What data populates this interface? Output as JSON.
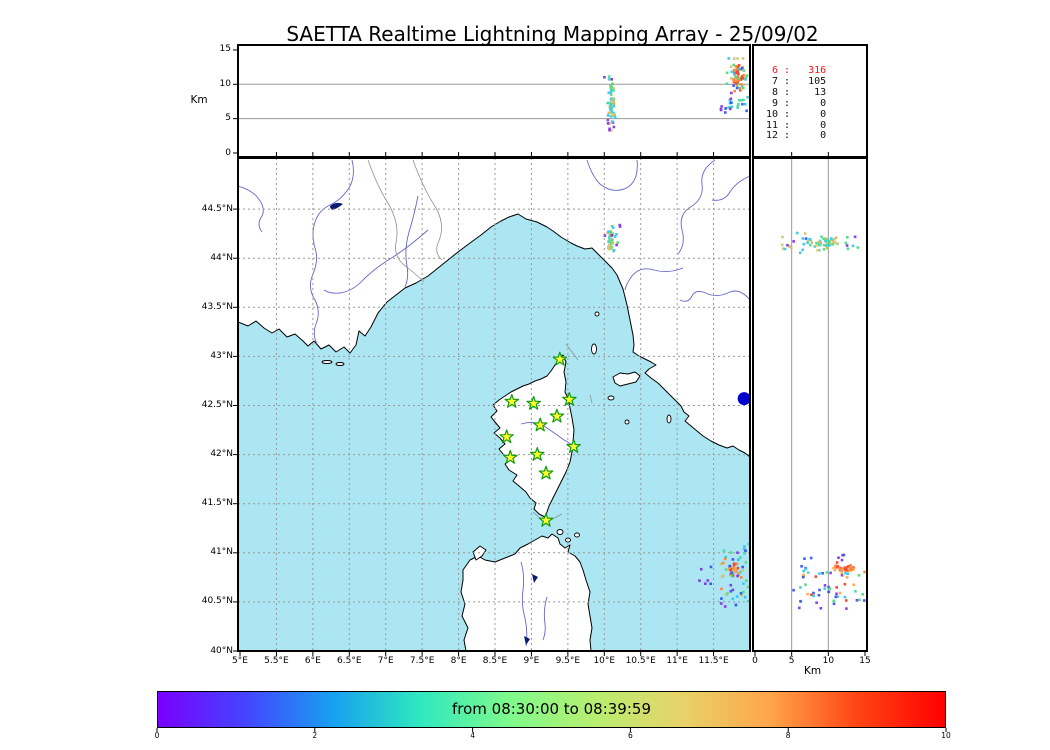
{
  "title": "SAETTA Realtime Lightning Mapping Array - 25/09/02",
  "top_panel": {
    "ylabel": "Km",
    "ticks": [
      {
        "label": "15",
        "value": 15
      },
      {
        "label": "10",
        "value": 10
      },
      {
        "label": "5",
        "value": 5
      },
      {
        "label": "0",
        "value": 0
      }
    ]
  },
  "right_panel": {
    "xlabel": "Km",
    "ticks": [
      {
        "label": "0",
        "value": 0
      },
      {
        "label": "5",
        "value": 5
      },
      {
        "label": "10",
        "value": 10
      },
      {
        "label": "15",
        "value": 15
      }
    ]
  },
  "source_counts": {
    "rows": [
      {
        "station": "6",
        "count": "316",
        "highlight": true
      },
      {
        "station": "7",
        "count": "105",
        "highlight": false
      },
      {
        "station": "8",
        "count": "13",
        "highlight": false
      },
      {
        "station": "9",
        "count": "0",
        "highlight": false
      },
      {
        "station": "10",
        "count": "0",
        "highlight": false
      },
      {
        "station": "11",
        "count": "0",
        "highlight": false
      },
      {
        "station": "12",
        "count": "0",
        "highlight": false
      }
    ],
    "highlight_color": "#ff1010"
  },
  "map_axes": {
    "lat_ticks": [
      {
        "label": "44.5°N",
        "value": 44.5
      },
      {
        "label": "44°N",
        "value": 44
      },
      {
        "label": "43.5°N",
        "value": 43.5
      },
      {
        "label": "43°N",
        "value": 43
      },
      {
        "label": "42.5°N",
        "value": 42.5
      },
      {
        "label": "42°N",
        "value": 42
      },
      {
        "label": "41.5°N",
        "value": 41.5
      },
      {
        "label": "41°N",
        "value": 41
      },
      {
        "label": "40.5°N",
        "value": 40.5
      },
      {
        "label": "40°N",
        "value": 40
      }
    ],
    "lon_ticks": [
      {
        "label": "5°E",
        "value": 5
      },
      {
        "label": "5.5°E",
        "value": 5.5
      },
      {
        "label": "6°E",
        "value": 6
      },
      {
        "label": "6.5°E",
        "value": 6.5
      },
      {
        "label": "7°E",
        "value": 7
      },
      {
        "label": "7.5°E",
        "value": 7.5
      },
      {
        "label": "8°E",
        "value": 8
      },
      {
        "label": "8.5°E",
        "value": 8.5
      },
      {
        "label": "9°E",
        "value": 9
      },
      {
        "label": "9.5°E",
        "value": 9.5
      },
      {
        "label": "10°E",
        "value": 10
      },
      {
        "label": "10.5°E",
        "value": 10.5
      },
      {
        "label": "11°E",
        "value": 11
      },
      {
        "label": "11.5°E",
        "value": 11.5
      }
    ]
  },
  "colorbar": {
    "label": "from 08:30:00 to 08:39:59",
    "range": [
      0,
      10
    ],
    "ticks": [
      {
        "label": "0",
        "value": 0
      },
      {
        "label": "2",
        "value": 2
      },
      {
        "label": "4",
        "value": 4
      },
      {
        "label": "6",
        "value": 6
      },
      {
        "label": "8",
        "value": 8
      },
      {
        "label": "10",
        "value": 10
      }
    ],
    "gradient": [
      "#7a00ff",
      "#4444ff",
      "#18a0f0",
      "#2fe8c0",
      "#7dfa8c",
      "#b8ee70",
      "#e8d268",
      "#ffa54a",
      "#ff4414",
      "#ff0000"
    ]
  },
  "map_colors": {
    "sea": "#ace6f2",
    "land": "#ffffff",
    "coast": "#000000",
    "river": "#6666cc",
    "border": "#909090",
    "lake": "#0a1a70",
    "lake_dot": "#0000cd",
    "grid": "#999999",
    "star_fill": "#ffff2e",
    "star_stroke": "#0f9b0f"
  },
  "chart_data": {
    "type": "scatter",
    "panels": {
      "top": {
        "x_var": "longitude_deg_east",
        "x_range": [
          5,
          12
        ],
        "y_var": "altitude_km",
        "y_range": [
          0,
          15
        ],
        "gridlines_y": [
          5,
          10
        ]
      },
      "map": {
        "x_var": "longitude_deg_east",
        "x_range": [
          5,
          12
        ],
        "y_var": "latitude_deg_north",
        "y_range": [
          40,
          45
        ],
        "grid_step": 0.5
      },
      "right": {
        "x_var": "altitude_km",
        "x_range": [
          0,
          15
        ],
        "y_var": "latitude_deg_north",
        "y_range": [
          40,
          45
        ],
        "gridlines_x": [
          5,
          10
        ]
      }
    },
    "stations": [
      {
        "lon": 9.39,
        "lat": 42.97
      },
      {
        "lon": 8.73,
        "lat": 42.54
      },
      {
        "lon": 9.03,
        "lat": 42.52
      },
      {
        "lon": 9.52,
        "lat": 42.56
      },
      {
        "lon": 9.35,
        "lat": 42.39
      },
      {
        "lon": 9.12,
        "lat": 42.3
      },
      {
        "lon": 9.58,
        "lat": 42.08
      },
      {
        "lon": 8.66,
        "lat": 42.18
      },
      {
        "lon": 9.08,
        "lat": 42.0
      },
      {
        "lon": 8.71,
        "lat": 41.97
      },
      {
        "lon": 9.2,
        "lat": 41.81
      },
      {
        "lon": 9.2,
        "lat": 41.33
      }
    ],
    "lake_marker": {
      "lon": 11.92,
      "lat": 42.57
    },
    "clusters": [
      {
        "id": "north-storm-top",
        "panel": "top",
        "dist": "tri",
        "n": 48,
        "x": [
          10.04,
          10.15
        ],
        "y": [
          4.2,
          10.8
        ],
        "colors": [
          "#29c8e8",
          "#3fd9a0",
          "#52d462",
          "#cfc36e",
          "#d8b55e",
          "#29c8e8",
          "#3fd9a0"
        ]
      },
      {
        "id": "north-storm-top-low",
        "panel": "top",
        "dist": "uni",
        "n": 10,
        "x": [
          10.02,
          10.16
        ],
        "y": [
          2.8,
          5.2
        ],
        "colors": [
          "#7d2ee0",
          "#9932cc",
          "#29c8e8",
          "#cfc36e"
        ]
      },
      {
        "id": "north-storm-top-high",
        "panel": "top",
        "dist": "uni",
        "n": 4,
        "x": [
          10.0,
          10.17
        ],
        "y": [
          10.6,
          11.6
        ],
        "colors": [
          "#7d2ee0",
          "#29c8e8",
          "#3fd9a0"
        ]
      },
      {
        "id": "south-storm-top-core",
        "panel": "top",
        "dist": "tri",
        "n": 42,
        "x": [
          11.74,
          11.93
        ],
        "y": [
          8.4,
          13.4
        ],
        "colors": [
          "#f2391c",
          "#ff7f2a",
          "#ffa04a",
          "#f2391c",
          "#ff7f2a"
        ]
      },
      {
        "id": "south-storm-top-halo",
        "panel": "top",
        "dist": "uni",
        "n": 42,
        "x": [
          11.68,
          11.97
        ],
        "y": [
          6.0,
          13.8
        ],
        "colors": [
          "#29c8e8",
          "#4cd97a",
          "#2b4ff0",
          "#3fd9a0",
          "#cfc36e",
          "#29c8e8"
        ]
      },
      {
        "id": "south-storm-top-west",
        "panel": "top",
        "dist": "uni",
        "n": 10,
        "x": [
          11.6,
          11.76
        ],
        "y": [
          5.2,
          9.0
        ],
        "colors": [
          "#7d2ee0",
          "#2b4ff0",
          "#29c8e8"
        ]
      },
      {
        "id": "north-storm-map-core",
        "panel": "map",
        "dist": "tri",
        "n": 40,
        "x": [
          10.04,
          10.14
        ],
        "y": [
          44.06,
          44.3
        ],
        "colors": [
          "#cfc36e",
          "#d8b55e",
          "#4cd97a",
          "#29c8e8",
          "#3fd9a0"
        ]
      },
      {
        "id": "north-storm-map-halo",
        "panel": "map",
        "dist": "uni",
        "n": 8,
        "x": [
          10.0,
          10.19
        ],
        "y": [
          44.0,
          44.33
        ],
        "colors": [
          "#7d2ee0",
          "#29c8e8",
          "#4cd97a"
        ]
      },
      {
        "id": "north-storm-map-outlier",
        "panel": "map",
        "dist": "uni",
        "n": 2,
        "x": [
          10.17,
          10.22
        ],
        "y": [
          44.32,
          44.37
        ],
        "colors": [
          "#7d2ee0"
        ]
      },
      {
        "id": "south-storm-map-core",
        "panel": "map",
        "dist": "tri",
        "n": 26,
        "x": [
          11.7,
          11.86
        ],
        "y": [
          40.74,
          40.93
        ],
        "colors": [
          "#f2391c",
          "#ff7f2a",
          "#ffa04a"
        ]
      },
      {
        "id": "south-storm-map-halo",
        "panel": "map",
        "dist": "uni",
        "n": 46,
        "x": [
          11.58,
          11.98
        ],
        "y": [
          40.44,
          41.03
        ],
        "colors": [
          "#2b4ff0",
          "#29c8e8",
          "#7d2ee0",
          "#3fd9a0",
          "#4cd97a",
          "#cfc36e",
          "#ff7f2a"
        ]
      },
      {
        "id": "south-storm-map-west",
        "panel": "map",
        "dist": "uni",
        "n": 6,
        "x": [
          11.3,
          11.48
        ],
        "y": [
          40.68,
          40.88
        ],
        "colors": [
          "#2b4ff0",
          "#7d2ee0"
        ]
      },
      {
        "id": "south-storm-map-north",
        "panel": "map",
        "dist": "uni",
        "n": 4,
        "x": [
          11.86,
          11.99
        ],
        "y": [
          41.02,
          41.16
        ],
        "colors": [
          "#2b4ff0",
          "#7d2ee0",
          "#29c8e8"
        ]
      },
      {
        "id": "north-storm-right-core",
        "panel": "right",
        "dist": "tri",
        "n": 46,
        "x": [
          6.5,
          12.5
        ],
        "y": [
          44.07,
          44.23
        ],
        "colors": [
          "#cfc36e",
          "#4cd97a",
          "#3fd9a0",
          "#29c8e8",
          "#d8b55e"
        ]
      },
      {
        "id": "north-storm-right-low",
        "panel": "right",
        "dist": "uni",
        "n": 16,
        "x": [
          3.6,
          7.0
        ],
        "y": [
          44.04,
          44.26
        ],
        "colors": [
          "#7d2ee0",
          "#29c8e8",
          "#2b4ff0",
          "#cfc36e"
        ]
      },
      {
        "id": "north-storm-right-high",
        "panel": "right",
        "dist": "uni",
        "n": 6,
        "x": [
          12.5,
          14.6
        ],
        "y": [
          44.08,
          44.24
        ],
        "colors": [
          "#29c8e8",
          "#4cd97a",
          "#7d2ee0"
        ]
      },
      {
        "id": "south-storm-right-band",
        "panel": "right",
        "dist": "tri",
        "n": 32,
        "x": [
          9.0,
          15.1
        ],
        "y": [
          40.8,
          40.88
        ],
        "colors": [
          "#f2391c",
          "#ff7f2a",
          "#ffa04a",
          "#f2391c"
        ]
      },
      {
        "id": "south-storm-right-halo",
        "panel": "right",
        "dist": "uni",
        "n": 46,
        "x": [
          6.0,
          15.1
        ],
        "y": [
          40.42,
          40.8
        ],
        "colors": [
          "#2b4ff0",
          "#29c8e8",
          "#7d2ee0",
          "#3fd9a0",
          "#4cd97a",
          "#f2391c",
          "#ffa04a"
        ]
      },
      {
        "id": "south-storm-right-low",
        "panel": "right",
        "dist": "uni",
        "n": 12,
        "x": [
          5.0,
          9.2
        ],
        "y": [
          40.55,
          40.97
        ],
        "colors": [
          "#2b4ff0",
          "#29c8e8"
        ]
      },
      {
        "id": "south-storm-right-north",
        "panel": "right",
        "dist": "uni",
        "n": 5,
        "x": [
          11.0,
          14.0
        ],
        "y": [
          40.9,
          41.0
        ],
        "colors": [
          "#2b4ff0",
          "#7d2ee0",
          "#f2391c"
        ]
      }
    ]
  }
}
